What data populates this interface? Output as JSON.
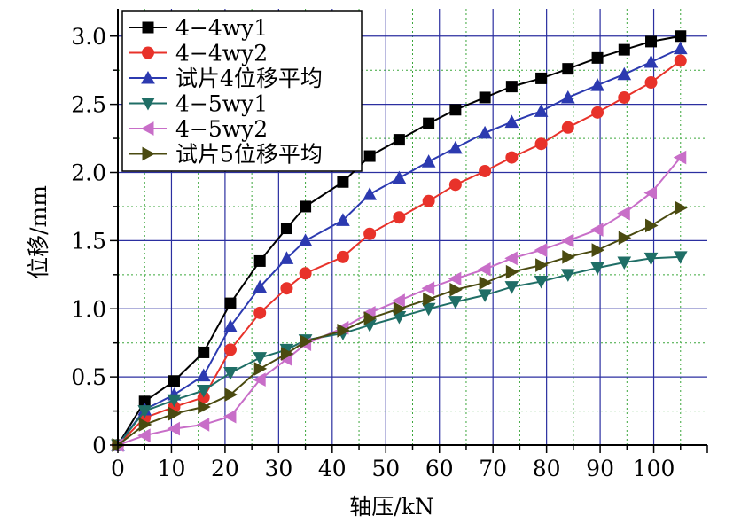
{
  "chart_data": {
    "type": "line",
    "title": "",
    "xlabel": "轴压/kN",
    "ylabel": "位移/mm",
    "xlim": [
      0,
      110
    ],
    "ylim": [
      0,
      3.2
    ],
    "xticks": [
      0,
      10,
      20,
      30,
      40,
      50,
      60,
      70,
      80,
      90,
      100
    ],
    "yticks": [
      0,
      0.5,
      1.0,
      1.5,
      2.0,
      2.5,
      3.0
    ],
    "ytick_labels": [
      "0",
      "0.5",
      "1.0",
      "1.5",
      "2.0",
      "2.5",
      "3.0"
    ],
    "grid": "major grid lines in blue, dotted minor grid lines in green",
    "legend_position": "top-left",
    "series": [
      {
        "name": "4−4wy1",
        "color": "#000000",
        "marker": "square",
        "x": [
          0,
          5,
          10.5,
          16,
          21,
          26.5,
          31.5,
          35,
          42,
          47,
          52.5,
          58,
          63,
          68.5,
          73.5,
          79,
          84,
          89.5,
          94.5,
          99.5,
          105
        ],
        "y": [
          0,
          0.32,
          0.47,
          0.68,
          1.04,
          1.35,
          1.59,
          1.75,
          1.93,
          2.12,
          2.24,
          2.36,
          2.46,
          2.55,
          2.63,
          2.69,
          2.76,
          2.84,
          2.9,
          2.96,
          3.0
        ]
      },
      {
        "name": "4−4wy2",
        "color": "#e8322a",
        "marker": "circle",
        "x": [
          0,
          5,
          10.5,
          16,
          21,
          26.5,
          31.5,
          35,
          42,
          47,
          52.5,
          58,
          63,
          68.5,
          73.5,
          79,
          84,
          89.5,
          94.5,
          99.5,
          105
        ],
        "y": [
          0,
          0.2,
          0.28,
          0.35,
          0.7,
          0.97,
          1.15,
          1.26,
          1.38,
          1.55,
          1.67,
          1.79,
          1.91,
          2.01,
          2.11,
          2.21,
          2.33,
          2.44,
          2.55,
          2.66,
          2.82
        ]
      },
      {
        "name": "试片4位移平均",
        "color": "#2c3ab0",
        "marker": "triangle-up",
        "x": [
          0,
          5,
          10.5,
          16,
          21,
          26.5,
          31.5,
          35,
          42,
          47,
          52.5,
          58,
          63,
          68.5,
          73.5,
          79,
          84,
          89.5,
          94.5,
          99.5,
          105
        ],
        "y": [
          0,
          0.26,
          0.37,
          0.51,
          0.87,
          1.16,
          1.37,
          1.5,
          1.65,
          1.84,
          1.96,
          2.08,
          2.18,
          2.29,
          2.37,
          2.45,
          2.55,
          2.64,
          2.72,
          2.81,
          2.91
        ]
      },
      {
        "name": "4−5wy1",
        "color": "#1f6e66",
        "marker": "triangle-down",
        "x": [
          0,
          5,
          10.5,
          16,
          21,
          26.5,
          31.5,
          35,
          42,
          47,
          52.5,
          58,
          63,
          68.5,
          73.5,
          79,
          84,
          89.5,
          94.5,
          99.5,
          105
        ],
        "y": [
          0,
          0.25,
          0.33,
          0.4,
          0.53,
          0.64,
          0.7,
          0.77,
          0.82,
          0.88,
          0.94,
          1.0,
          1.05,
          1.1,
          1.16,
          1.2,
          1.25,
          1.3,
          1.34,
          1.37,
          1.38
        ]
      },
      {
        "name": "4−5wy2",
        "color": "#c86ec8",
        "marker": "triangle-left",
        "x": [
          0,
          5,
          10.5,
          16,
          21,
          26.5,
          31.5,
          35,
          42,
          47,
          52.5,
          58,
          63,
          68.5,
          73.5,
          79,
          84,
          89.5,
          94.5,
          99.5,
          105
        ],
        "y": [
          0,
          0.07,
          0.12,
          0.15,
          0.21,
          0.48,
          0.63,
          0.74,
          0.86,
          0.97,
          1.06,
          1.15,
          1.22,
          1.29,
          1.37,
          1.43,
          1.5,
          1.58,
          1.7,
          1.85,
          2.11
        ]
      },
      {
        "name": "试片5位移平均",
        "color": "#4a4a10",
        "marker": "triangle-right",
        "x": [
          0,
          5,
          10.5,
          16,
          21,
          26.5,
          31.5,
          35,
          42,
          47,
          52.5,
          58,
          63,
          68.5,
          73.5,
          79,
          84,
          89.5,
          94.5,
          99.5,
          105
        ],
        "y": [
          0,
          0.15,
          0.23,
          0.28,
          0.37,
          0.56,
          0.67,
          0.76,
          0.84,
          0.93,
          1.0,
          1.07,
          1.14,
          1.19,
          1.27,
          1.32,
          1.38,
          1.43,
          1.52,
          1.61,
          1.74
        ]
      }
    ]
  }
}
